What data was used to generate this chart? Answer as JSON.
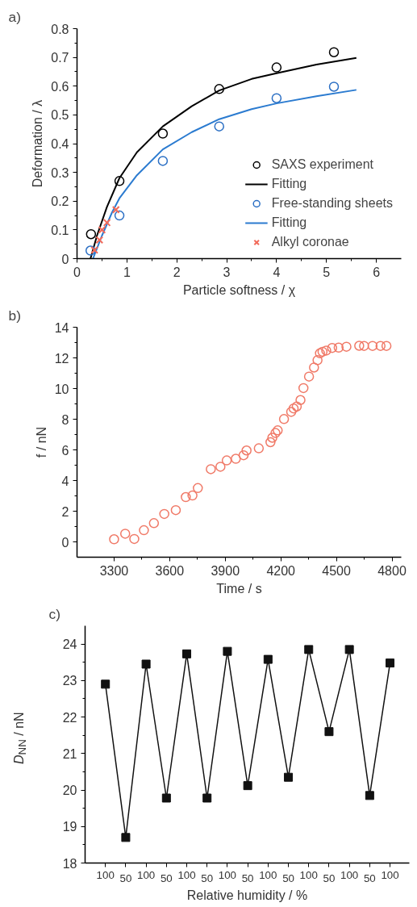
{
  "chart_data": [
    {
      "type": "scatter",
      "title": "a)",
      "xlabel": "Particle softness / χ",
      "ylabel": "Deformation / λ",
      "xlim": [
        0,
        6.5
      ],
      "ylim": [
        0,
        0.8
      ],
      "xticks": [
        0,
        1,
        2,
        3,
        4,
        5,
        6
      ],
      "yticks": [
        0,
        0.1,
        0.2,
        0.3,
        0.4,
        0.5,
        0.6,
        0.7,
        0.8
      ],
      "legend": "bottom right",
      "grid": false,
      "series": [
        {
          "name": "SAXS experiment",
          "type": "scatter",
          "marker": "circle",
          "color": "#000000",
          "x": [
            0.28,
            0.85,
            1.72,
            2.85,
            4.0,
            5.15
          ],
          "values": [
            0.085,
            0.27,
            0.435,
            0.59,
            0.665,
            0.718
          ]
        },
        {
          "name": "Fitting",
          "type": "line",
          "marker": "none",
          "color": "#000000",
          "x": [
            0.27,
            0.4,
            0.6,
            0.85,
            1.2,
            1.72,
            2.3,
            2.85,
            3.5,
            4.0,
            4.8,
            5.6
          ],
          "values": [
            0,
            0.08,
            0.18,
            0.28,
            0.37,
            0.46,
            0.53,
            0.585,
            0.625,
            0.645,
            0.675,
            0.698
          ]
        },
        {
          "name": "Free-standing sheets",
          "type": "scatter",
          "marker": "circle",
          "color": "#2b6fc4",
          "x": [
            0.27,
            0.85,
            1.72,
            2.85,
            4.0,
            5.15
          ],
          "values": [
            0.028,
            0.15,
            0.34,
            0.46,
            0.558,
            0.598
          ]
        },
        {
          "name": "Fitting",
          "type": "line",
          "marker": "none",
          "color": "#2b7bd0",
          "x": [
            0.32,
            0.5,
            0.7,
            0.85,
            1.2,
            1.72,
            2.3,
            2.85,
            3.5,
            4.0,
            4.8,
            5.6
          ],
          "values": [
            0,
            0.08,
            0.16,
            0.21,
            0.29,
            0.38,
            0.44,
            0.485,
            0.52,
            0.54,
            0.565,
            0.587
          ]
        },
        {
          "name": "Alkyl coronae",
          "type": "scatter",
          "marker": "cross",
          "color": "#f26b5b",
          "x": [
            0.35,
            0.45,
            0.5,
            0.6,
            0.78
          ],
          "values": [
            0.03,
            0.065,
            0.1,
            0.125,
            0.17
          ]
        }
      ]
    },
    {
      "type": "scatter",
      "title": "b)",
      "xlabel": "Time / s",
      "ylabel": "f / nN",
      "xlim": [
        3100,
        4850
      ],
      "ylim": [
        -1,
        14
      ],
      "xticks": [
        3300,
        3600,
        3900,
        4200,
        4500,
        4800
      ],
      "yticks": [
        0,
        2,
        4,
        6,
        8,
        10,
        12,
        14
      ],
      "legend": false,
      "grid": false,
      "series": [
        {
          "type": "scatter",
          "marker": "circle",
          "color": "#f07a68",
          "x": [
            3300,
            3360,
            3409,
            3461,
            3515,
            3571,
            3633,
            3687,
            3723,
            3752,
            3822,
            3874,
            3908,
            3957,
            3999,
            4015,
            4081,
            4144,
            4154,
            4171,
            4183,
            4217,
            4256,
            4269,
            4286,
            4306,
            4322,
            4352,
            4379,
            4398,
            4411,
            4425,
            4445,
            4477,
            4512,
            4554,
            4623,
            4649,
            4695,
            4738,
            4770
          ],
          "values": [
            0.17,
            0.53,
            0.19,
            0.76,
            1.22,
            1.82,
            2.07,
            2.92,
            3.02,
            3.51,
            4.74,
            4.9,
            5.31,
            5.42,
            5.65,
            5.96,
            6.1,
            6.5,
            6.79,
            7.1,
            7.27,
            8.01,
            8.48,
            8.7,
            8.83,
            9.25,
            10.03,
            10.78,
            11.37,
            11.85,
            12.3,
            12.4,
            12.48,
            12.65,
            12.67,
            12.73,
            12.79,
            12.78,
            12.78,
            12.78,
            12.78
          ]
        }
      ]
    },
    {
      "type": "line",
      "title": "c)",
      "xlabel": "Relative humidity / %",
      "ylabel": "D$_{NN}$ / nN",
      "ylim": [
        18,
        24.5
      ],
      "yticks": [
        18,
        19,
        20,
        21,
        22,
        23,
        24
      ],
      "legend": false,
      "grid": false,
      "marker": "square",
      "categories": [
        "100",
        "50",
        "100",
        "50",
        "100",
        "50",
        "100",
        "50",
        "100",
        "50",
        "100",
        "50",
        "100",
        "50",
        "100"
      ],
      "series": [
        {
          "color": "#111111",
          "values": [
            22.9,
            18.7,
            23.45,
            19.78,
            23.73,
            19.78,
            23.8,
            20.12,
            23.58,
            20.35,
            23.85,
            21.6,
            23.85,
            19.85,
            23.48
          ]
        }
      ]
    }
  ]
}
